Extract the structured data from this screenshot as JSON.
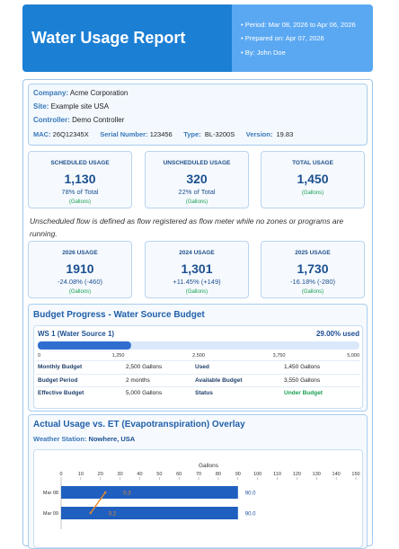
{
  "header": {
    "title": "Water Usage Report",
    "meta": [
      "Period: Mar 08, 2026 to Apr 06, 2026",
      "Prepared on: Apr 07, 2026",
      "By: John Doe"
    ]
  },
  "info": {
    "company_label": "Company:",
    "company": "Acme Corporation",
    "site_label": "Site:",
    "site": "Example site USA",
    "controller_label": "Controller:",
    "controller": "Demo Controller",
    "mac_label": "MAC:",
    "mac": "26Q12345X",
    "serial_label": "Serial Number:",
    "serial": "123456",
    "type_label": "Type:",
    "type": "BL-3200S",
    "version_label": "Version:",
    "version": "19.83"
  },
  "usage_cards": [
    {
      "title": "SCHEDULED USAGE",
      "value": "1,130",
      "sub": "78% of Total",
      "unit": "(Gallons)"
    },
    {
      "title": "UNSCHEDULED USAGE",
      "value": "320",
      "sub": "22% of Total",
      "unit": "(Gallons)"
    },
    {
      "title": "TOTAL USAGE",
      "value": "1,450",
      "unit": "(Gallons)"
    }
  ],
  "note": "Unscheduled flow is defined as flow registered as flow meter while no zones or programs are running.",
  "year_cards": [
    {
      "title": "2026 USAGE",
      "value": "1910",
      "change": "-24.08% (-460)",
      "unit": "(Gallons)"
    },
    {
      "title": "2024 USAGE",
      "value": "1,301",
      "change": "+11.45% (+149)",
      "unit": "(Gallons)"
    },
    {
      "title": "2025 USAGE",
      "value": "1,730",
      "change": "-16.18% (-280)",
      "unit": "(Gallons)"
    }
  ],
  "budget": {
    "title": "Budget Progress - Water Source Budget",
    "source": "WS 1 (Water Source 1)",
    "percent": "29.00% used",
    "progress": {
      "value": 1450,
      "xlim": [
        0,
        5000
      ],
      "xticks": [
        0,
        {
          "value": 1250,
          "label": "1,250"
        },
        {
          "value": 2500,
          "label": "2,500"
        },
        {
          "value": 3750,
          "label": "3,750"
        },
        {
          "value": 5000,
          "label": "5,000"
        }
      ]
    },
    "rows": [
      [
        "Monthly Budget",
        "2,500 Gallons",
        "Used",
        "1,450 Gallons"
      ],
      [
        "Budget Period",
        "2 months",
        "Available Budget",
        "3,550 Gallons"
      ],
      [
        "Effective Budget",
        "5,000 Gallons",
        "Status",
        "Under Budget"
      ]
    ]
  },
  "overlay": {
    "title": "Actual Usage vs. ET (Evapotranspiration) Overlay",
    "station_label": "Weather Station:",
    "station": "Nowhere, USA",
    "chart_data": {
      "type": "bar",
      "xlabel": "Gallons",
      "categories": [
        "Mar 08",
        "Mar 09"
      ],
      "series": [
        {
          "color": "#1f5fbf",
          "values": [
            90,
            90
          ],
          "value_labels": [
            "90.0",
            "90.0"
          ]
        },
        {
          "color": "#e8892b",
          "axis": "x2",
          "values": [
            0.3,
            0.2
          ]
        }
      ],
      "xlim": [
        0,
        150
      ],
      "xticks": [
        0,
        10,
        20,
        30,
        40,
        50,
        60,
        70,
        80,
        90,
        100,
        110,
        120,
        130,
        140,
        150
      ],
      "x2lim": [
        0,
        2
      ]
    }
  }
}
